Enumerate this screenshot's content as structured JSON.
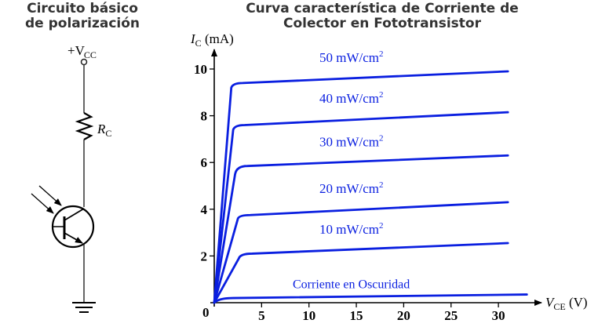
{
  "circuit": {
    "title_line1": "Circuito básico",
    "title_line2": "de polarización",
    "supply_label": "+V",
    "supply_sub": "CC",
    "resistor_label": "R",
    "resistor_sub": "C",
    "components": [
      "supply-terminal",
      "resistor",
      "phototransistor",
      "ground"
    ]
  },
  "chart": {
    "title_line1": "Curva característica de Corriente de",
    "title_line2": "Colector en Fototransistor",
    "ylabel_main": "I",
    "ylabel_sub": "C",
    "ylabel_unit": " (mA)",
    "xlabel_main": "V",
    "xlabel_sub": "CE",
    "xlabel_unit": " (V)",
    "origin_label": "0",
    "curve_color": "#0a1fe0",
    "dark_label": "Corriente en Oscuridad"
  },
  "chart_data": {
    "type": "line",
    "title": "Curva característica de Corriente de Colector en Fototransistor",
    "xlabel": "V_CE (V)",
    "ylabel": "I_C (mA)",
    "xlim": [
      0,
      33
    ],
    "ylim": [
      0,
      10.5
    ],
    "xticks": [
      5,
      10,
      15,
      20,
      25,
      30
    ],
    "yticks": [
      2,
      4,
      6,
      8,
      10
    ],
    "grid": false,
    "legend_position": "inline labels above curves",
    "series": [
      {
        "name": "50 mW/cm²",
        "label_num": "50 mW/cm",
        "x": [
          0,
          1.8,
          3,
          31
        ],
        "y": [
          0,
          9.2,
          9.4,
          9.9
        ]
      },
      {
        "name": "40 mW/cm²",
        "label_num": "40 mW/cm",
        "x": [
          0,
          2.0,
          3.2,
          31
        ],
        "y": [
          0,
          7.4,
          7.6,
          8.15
        ]
      },
      {
        "name": "30 mW/cm²",
        "label_num": "30 mW/cm",
        "x": [
          0,
          2.2,
          3.5,
          31
        ],
        "y": [
          0,
          5.5,
          5.85,
          6.3
        ]
      },
      {
        "name": "20 mW/cm²",
        "label_num": "20 mW/cm",
        "x": [
          0,
          2.5,
          3.8,
          31
        ],
        "y": [
          0,
          3.6,
          3.75,
          4.3
        ]
      },
      {
        "name": "10 mW/cm²",
        "label_num": "10 mW/cm",
        "x": [
          0,
          2.6,
          4.0,
          31
        ],
        "y": [
          0,
          1.9,
          2.1,
          2.55
        ]
      },
      {
        "name": "Corriente en Oscuridad",
        "label_num": "Corriente en Oscuridad",
        "x": [
          0,
          2,
          33
        ],
        "y": [
          0,
          0.2,
          0.35
        ]
      }
    ]
  }
}
